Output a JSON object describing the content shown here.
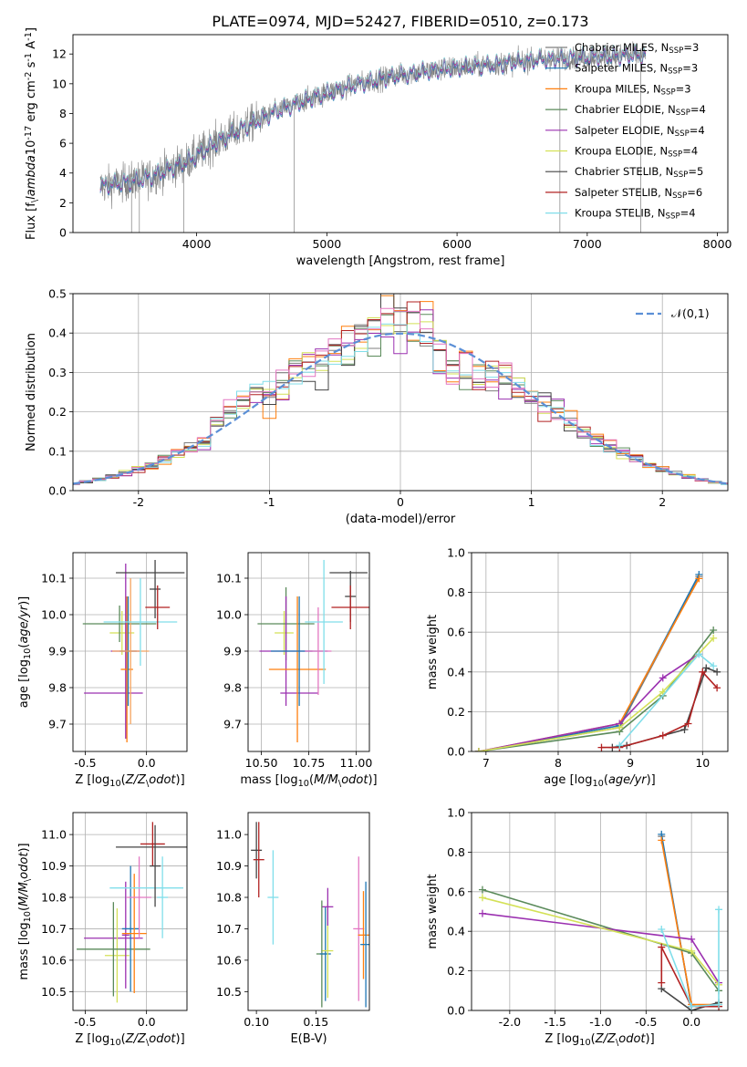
{
  "title": "PLATE=0974, MJD=52427, FIBERID=0510, z=0.173",
  "series": [
    {
      "name": "Chabrier MILES, N$_{SSP}$=3",
      "color": "#7f7f7f"
    },
    {
      "name": "Salpeter MILES, N$_{SSP}$=3",
      "color": "#1f77b4"
    },
    {
      "name": "Kroupa MILES, N$_{SSP}$=3",
      "color": "#ff7f0e"
    },
    {
      "name": "Chabrier ELODIE, N$_{SSP}$=4",
      "color": "#5a8a5a"
    },
    {
      "name": "Salpeter ELODIE, N$_{SSP}$=4",
      "color": "#9b30b0"
    },
    {
      "name": "Kroupa ELODIE, N$_{SSP}$=4",
      "color": "#d4e157"
    },
    {
      "name": "Chabrier STELIB, N$_{SSP}$=5",
      "color": "#444444"
    },
    {
      "name": "Salpeter STELIB, N$_{SSP}$=6",
      "color": "#b22222"
    },
    {
      "name": "Kroupa STELIB, N$_{SSP}$=4",
      "color": "#80deea"
    }
  ],
  "chart_data": [
    {
      "id": "spectrum",
      "type": "line",
      "xlabel": "wavelength [Angstrom, rest frame]",
      "ylabel": "Flux [f$_\\lambda$10$^{-17}$ erg cm$^{-2}$ s$^{-1}$ A$^{-1}$]",
      "xlim": [
        3050,
        8080
      ],
      "ylim": [
        0,
        13.3
      ],
      "xticks": [
        4000,
        5000,
        6000,
        7000,
        8000
      ],
      "yticks": [
        0,
        2,
        4,
        6,
        8,
        10,
        12
      ],
      "grid": false,
      "legend": "right",
      "continuum": {
        "x": [
          3250,
          3400,
          3600,
          3800,
          3950,
          4100,
          4300,
          4600,
          4900,
          5200,
          5500,
          5800,
          6000,
          6300,
          6600,
          7000,
          7300,
          7450
        ],
        "y": [
          3.1,
          3.3,
          3.6,
          4.3,
          4.9,
          5.8,
          6.8,
          8.1,
          9.1,
          9.9,
          10.5,
          10.9,
          11.1,
          11.3,
          11.6,
          11.8,
          11.9,
          11.9
        ]
      },
      "observed_color": "#808080",
      "spike_x": [
        3500,
        3560,
        3900,
        4750,
        6790,
        7410
      ]
    },
    {
      "id": "residual_histogram",
      "type": "bar",
      "xlabel": "(data-model)/error",
      "ylabel": "Normed distribution",
      "xlim": [
        -2.5,
        2.5
      ],
      "ylim": [
        0,
        0.5
      ],
      "xticks": [
        -2,
        -1,
        0,
        1,
        2
      ],
      "yticks": [
        0.0,
        0.1,
        0.2,
        0.3,
        0.4,
        0.5
      ],
      "grid": true,
      "legend": "top-right",
      "bin_width": 0.1,
      "reference_curve": {
        "name": "$\\mathcal{N}(0,1)$",
        "color": "#5b8fd6"
      },
      "hist_colors": [
        "#7f7f7f",
        "#ff7f0e",
        "#5a8a5a",
        "#9b30b0",
        "#d4e157",
        "#444444",
        "#b22222",
        "#80deea",
        "#e377c2"
      ]
    },
    {
      "id": "age_vs_metallicity",
      "type": "scatter",
      "xlabel": "Z [log$_{10}$($Z/Z_\\odot$)]",
      "ylabel": "age  [log$_{10}$($age/yr$)]",
      "xlim": [
        -0.6,
        0.33
      ],
      "ylim": [
        9.625,
        10.17
      ],
      "xticks": [
        -0.5,
        0.0
      ],
      "yticks": [
        9.7,
        9.8,
        9.9,
        10.0,
        10.1
      ],
      "grid": true,
      "points": [
        {
          "x": -0.27,
          "y": 9.785,
          "xerr": 0.24,
          "yerr": 0.0,
          "color": "#9b30b0"
        },
        {
          "x": -0.2,
          "y": 9.95,
          "xerr": 0.1,
          "yerr": 0.06,
          "color": "#d4e157"
        },
        {
          "x": -0.22,
          "y": 9.975,
          "xerr": 0.3,
          "yerr": 0.05,
          "color": "#5a8a5a"
        },
        {
          "x": -0.17,
          "y": 9.9,
          "xerr": 0.12,
          "yerr": 0.24,
          "color": "#9b30b0"
        },
        {
          "x": -0.16,
          "y": 9.85,
          "xerr": 0.05,
          "yerr": 0.2,
          "color": "#ff7f0e"
        },
        {
          "x": -0.15,
          "y": 9.9,
          "xerr": 0.07,
          "yerr": 0.15,
          "color": "#1f77b4"
        },
        {
          "x": -0.13,
          "y": 9.9,
          "xerr": 0.15,
          "yerr": 0.2,
          "color": "#f4a460"
        },
        {
          "x": -0.05,
          "y": 9.98,
          "xerr": 0.3,
          "yerr": 0.12,
          "color": "#80deea"
        },
        {
          "x": 0.03,
          "y": 10.115,
          "xerr": 0.28,
          "yerr": 0.0,
          "color": "#444444"
        },
        {
          "x": 0.07,
          "y": 10.07,
          "xerr": 0.0,
          "yerr": 0.08,
          "color": "#444444"
        },
        {
          "x": 0.09,
          "y": 10.02,
          "xerr": 0.1,
          "yerr": 0.06,
          "color": "#b22222"
        }
      ]
    },
    {
      "id": "age_vs_mass",
      "type": "scatter",
      "xlabel": "mass [log$_{10}$($M/M_\\odot$)]",
      "ylabel": "",
      "xlim": [
        10.43,
        11.07
      ],
      "ylim": [
        9.625,
        10.17
      ],
      "xticks": [
        10.5,
        10.75,
        11.0
      ],
      "yticks": [
        9.7,
        9.8,
        9.9,
        10.0,
        10.1
      ],
      "grid": true,
      "points": [
        {
          "x": 10.7,
          "y": 9.785,
          "xerr": 0.1,
          "yerr": 0.0,
          "color": "#9b30b0"
        },
        {
          "x": 10.62,
          "y": 9.95,
          "xerr": 0.05,
          "yerr": 0.06,
          "color": "#d4e157"
        },
        {
          "x": 10.63,
          "y": 9.975,
          "xerr": 0.15,
          "yerr": 0.1,
          "color": "#5a8a5a"
        },
        {
          "x": 10.63,
          "y": 9.9,
          "xerr": 0.14,
          "yerr": 0.15,
          "color": "#9b30b0"
        },
        {
          "x": 10.69,
          "y": 9.85,
          "xerr": 0.15,
          "yerr": 0.2,
          "color": "#ff7f0e"
        },
        {
          "x": 10.7,
          "y": 9.9,
          "xerr": 0.15,
          "yerr": 0.15,
          "color": "#1f77b4"
        },
        {
          "x": 10.8,
          "y": 9.9,
          "xerr": 0.07,
          "yerr": 0.12,
          "color": "#e377c2"
        },
        {
          "x": 10.83,
          "y": 9.98,
          "xerr": 0.1,
          "yerr": 0.17,
          "color": "#80deea"
        },
        {
          "x": 10.96,
          "y": 10.115,
          "xerr": 0.1,
          "yerr": 0.0,
          "color": "#444444"
        },
        {
          "x": 10.97,
          "y": 10.05,
          "xerr": 0.0,
          "yerr": 0.07,
          "color": "#444444"
        },
        {
          "x": 10.97,
          "y": 10.02,
          "xerr": 0.1,
          "yerr": 0.06,
          "color": "#b22222"
        }
      ]
    },
    {
      "id": "mass_weight_vs_age",
      "type": "line",
      "xlabel": "age  [log$_{10}$($age/yr$)]",
      "ylabel": "mass weight",
      "xlim": [
        6.8,
        10.35
      ],
      "ylim": [
        0,
        1.0
      ],
      "xticks": [
        7,
        8,
        9,
        10
      ],
      "yticks": [
        0.0,
        0.2,
        0.4,
        0.6,
        0.8,
        1.0
      ],
      "grid": true,
      "series": [
        {
          "color": "#7f7f7f",
          "x": [
            6.9,
            8.85,
            9.95
          ],
          "y": [
            0.0,
            0.12,
            0.88
          ]
        },
        {
          "color": "#1f77b4",
          "x": [
            6.9,
            8.85,
            9.95
          ],
          "y": [
            0.0,
            0.13,
            0.89
          ]
        },
        {
          "color": "#ff7f0e",
          "x": [
            6.9,
            8.85,
            9.95
          ],
          "y": [
            0.0,
            0.14,
            0.87
          ]
        },
        {
          "color": "#5a8a5a",
          "x": [
            6.9,
            8.85,
            9.45,
            10.15
          ],
          "y": [
            0.0,
            0.1,
            0.28,
            0.61
          ]
        },
        {
          "color": "#9b30b0",
          "x": [
            6.9,
            8.85,
            9.45,
            9.95
          ],
          "y": [
            0.0,
            0.14,
            0.37,
            0.49
          ]
        },
        {
          "color": "#d4e157",
          "x": [
            6.9,
            8.85,
            9.45,
            10.15
          ],
          "y": [
            0.0,
            0.12,
            0.3,
            0.57
          ]
        },
        {
          "color": "#444444",
          "x": [
            8.75,
            8.95,
            9.75,
            10.05,
            10.2
          ],
          "y": [
            0.02,
            0.03,
            0.11,
            0.42,
            0.4
          ]
        },
        {
          "color": "#b22222",
          "x": [
            8.6,
            8.85,
            9.45,
            9.8,
            10.0,
            10.2
          ],
          "y": [
            0.02,
            0.02,
            0.08,
            0.14,
            0.4,
            0.32
          ]
        },
        {
          "color": "#80deea",
          "x": [
            8.85,
            9.95,
            10.15
          ],
          "y": [
            0.03,
            0.49,
            0.43
          ]
        }
      ]
    },
    {
      "id": "mass_vs_metallicity",
      "type": "scatter",
      "xlabel": "Z [log$_{10}$($Z/Z_\\odot$)]",
      "ylabel": "mass [log$_{10}$($M/M_\\odot$)]",
      "xlim": [
        -0.6,
        0.33
      ],
      "ylim": [
        10.44,
        11.07
      ],
      "xticks": [
        -0.5,
        0.0
      ],
      "yticks": [
        10.5,
        10.6,
        10.7,
        10.8,
        10.9,
        11.0
      ],
      "grid": true,
      "points": [
        {
          "x": -0.27,
          "y": 10.67,
          "xerr": 0.24,
          "yerr": 0.0,
          "color": "#9b30b0"
        },
        {
          "x": -0.24,
          "y": 10.615,
          "xerr": 0.1,
          "yerr": 0.15,
          "color": "#d4e157"
        },
        {
          "x": -0.27,
          "y": 10.635,
          "xerr": 0.3,
          "yerr": 0.15,
          "color": "#5a8a5a"
        },
        {
          "x": -0.17,
          "y": 10.68,
          "xerr": 0.03,
          "yerr": 0.17,
          "color": "#9b30b0"
        },
        {
          "x": -0.13,
          "y": 10.7,
          "xerr": 0.07,
          "yerr": 0.2,
          "color": "#1f77b4"
        },
        {
          "x": -0.1,
          "y": 10.685,
          "xerr": 0.1,
          "yerr": 0.19,
          "color": "#ff7f0e"
        },
        {
          "x": -0.06,
          "y": 10.8,
          "xerr": 0.1,
          "yerr": 0.13,
          "color": "#e377c2"
        },
        {
          "x": 0.0,
          "y": 10.83,
          "xerr": 0.3,
          "yerr": 0.0,
          "color": "#80deea"
        },
        {
          "x": 0.13,
          "y": 10.8,
          "xerr": 0.0,
          "yerr": 0.13,
          "color": "#80deea"
        },
        {
          "x": 0.05,
          "y": 10.96,
          "xerr": 0.3,
          "yerr": 0.0,
          "color": "#444444"
        },
        {
          "x": 0.05,
          "y": 10.97,
          "xerr": 0.1,
          "yerr": 0.07,
          "color": "#b22222"
        },
        {
          "x": 0.07,
          "y": 10.9,
          "xerr": 0.0,
          "yerr": 0.13,
          "color": "#444444"
        }
      ]
    },
    {
      "id": "extinction",
      "type": "scatter",
      "xlabel": "E(B-V)",
      "ylabel": "",
      "xlim": [
        0.093,
        0.195
      ],
      "ylim": [
        10.44,
        11.07
      ],
      "xticks": [
        0.1,
        0.15
      ],
      "yticks": [
        10.5,
        10.6,
        10.7,
        10.8,
        10.9,
        11.0
      ],
      "grid": false,
      "points": [
        {
          "x": 0.1,
          "y": 10.95,
          "xerr": 0.0,
          "yerr": 0.09,
          "color": "#444444"
        },
        {
          "x": 0.102,
          "y": 10.92,
          "xerr": 0.0,
          "yerr": 0.12,
          "color": "#b22222"
        },
        {
          "x": 0.114,
          "y": 10.8,
          "xerr": 0.0,
          "yerr": 0.15,
          "color": "#80deea"
        },
        {
          "x": 0.155,
          "y": 10.62,
          "xerr": 0.0,
          "yerr": 0.17,
          "color": "#5a8a5a"
        },
        {
          "x": 0.158,
          "y": 10.62,
          "xerr": 0.0,
          "yerr": 0.15,
          "color": "#1f77b4"
        },
        {
          "x": 0.16,
          "y": 10.63,
          "xerr": 0.0,
          "yerr": 0.15,
          "color": "#d4e157"
        },
        {
          "x": 0.16,
          "y": 10.77,
          "xerr": 0.0,
          "yerr": 0.06,
          "color": "#9b30b0"
        },
        {
          "x": 0.186,
          "y": 10.7,
          "xerr": 0.0,
          "yerr": 0.23,
          "color": "#e377c2"
        },
        {
          "x": 0.19,
          "y": 10.68,
          "xerr": 0.0,
          "yerr": 0.14,
          "color": "#ff7f0e"
        },
        {
          "x": 0.192,
          "y": 10.65,
          "xerr": 0.0,
          "yerr": 0.2,
          "color": "#1f77b4"
        }
      ]
    },
    {
      "id": "mass_weight_vs_metallicity",
      "type": "line",
      "xlabel": "Z [log$_{10}$($Z/Z_\\odot$)]",
      "ylabel": "mass weight",
      "xlim": [
        -2.42,
        0.4
      ],
      "ylim": [
        0,
        1.0
      ],
      "xticks": [
        -2.0,
        -1.5,
        -1.0,
        -0.5,
        0.0
      ],
      "yticks": [
        0.0,
        0.2,
        0.4,
        0.6,
        0.8,
        1.0
      ],
      "grid": true,
      "series": [
        {
          "color": "#7f7f7f",
          "x": [
            -0.33,
            0.0,
            0.3
          ],
          "y": [
            0.88,
            0.02,
            0.02
          ]
        },
        {
          "color": "#1f77b4",
          "x": [
            -0.33,
            0.0,
            0.3
          ],
          "y": [
            0.89,
            0.02,
            0.03
          ]
        },
        {
          "color": "#ff7f0e",
          "x": [
            -0.33,
            0.0,
            0.3
          ],
          "y": [
            0.86,
            0.03,
            0.03
          ]
        },
        {
          "color": "#5a8a5a",
          "x": [
            -2.3,
            0.0,
            0.3
          ],
          "y": [
            0.61,
            0.29,
            0.1
          ]
        },
        {
          "color": "#9b30b0",
          "x": [
            -2.3,
            0.0,
            0.3
          ],
          "y": [
            0.49,
            0.36,
            0.14
          ]
        },
        {
          "color": "#d4e157",
          "x": [
            -2.3,
            0.0,
            0.3
          ],
          "y": [
            0.57,
            0.3,
            0.13
          ]
        },
        {
          "color": "#444444",
          "x": [
            -0.33,
            0.0,
            0.3
          ],
          "y": [
            0.11,
            0.0,
            0.04
          ]
        },
        {
          "color": "#b22222",
          "x": [
            -0.33,
            -0.33,
            0.0,
            0.3
          ],
          "y": [
            0.14,
            0.32,
            0.02,
            0.02
          ]
        },
        {
          "color": "#80deea",
          "x": [
            -0.33,
            0.0,
            0.3,
            0.3
          ],
          "y": [
            0.41,
            0.02,
            0.03,
            0.51
          ]
        }
      ]
    }
  ]
}
